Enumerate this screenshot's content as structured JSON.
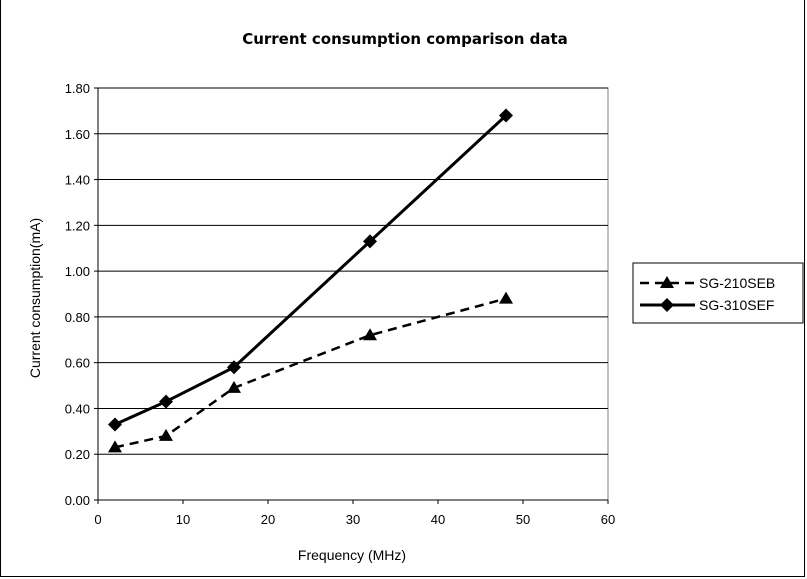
{
  "chart_data": {
    "type": "line",
    "title": "Current consumption comparison data",
    "xlabel": "Frequency (MHz)",
    "ylabel": "Current consumption(mA)",
    "xlim": [
      0,
      60
    ],
    "ylim": [
      0,
      1.8
    ],
    "xticks": [
      "0",
      "10",
      "20",
      "30",
      "40",
      "50",
      "60"
    ],
    "yticks": [
      "0.00",
      "0.20",
      "0.40",
      "0.60",
      "0.80",
      "1.00",
      "1.20",
      "1.40",
      "1.60",
      "1.80"
    ],
    "grid": "horizontal",
    "legend": "right",
    "series": [
      {
        "name": "SG-210SEB",
        "style": "dashed",
        "marker": "triangle",
        "color": "#000000",
        "points": [
          [
            2,
            0.23
          ],
          [
            8,
            0.28
          ],
          [
            16,
            0.49
          ],
          [
            32,
            0.72
          ],
          [
            48,
            0.88
          ]
        ]
      },
      {
        "name": "SG-310SEF",
        "style": "solid",
        "marker": "diamond",
        "color": "#000000",
        "points": [
          [
            2,
            0.33
          ],
          [
            8,
            0.43
          ],
          [
            16,
            0.58
          ],
          [
            32,
            1.13
          ],
          [
            48,
            1.68
          ]
        ]
      }
    ]
  }
}
